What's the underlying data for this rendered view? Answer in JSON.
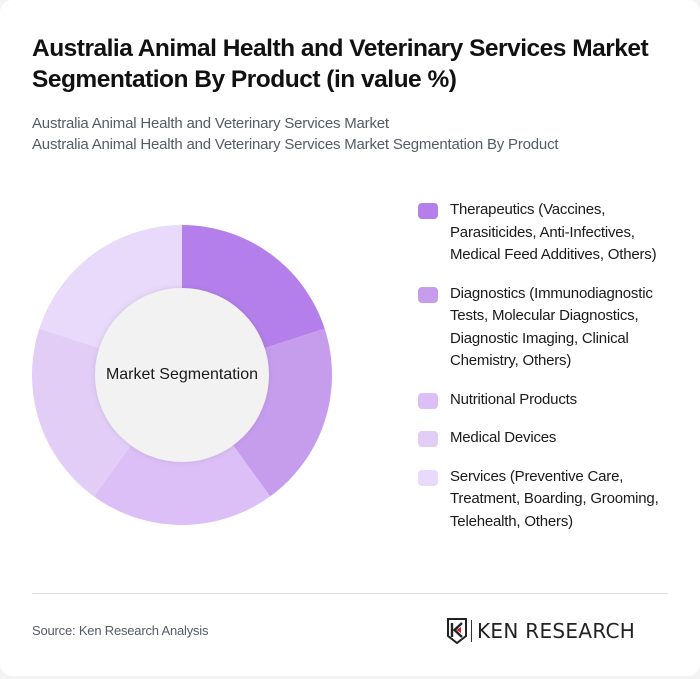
{
  "header": {
    "title": "Australia Animal Health and Veterinary Services Market Segmentation By Product (in value %)",
    "subtitle_lines": [
      "Australia Animal Health and Veterinary Services Market",
      "Australia Animal Health and Veterinary Services Market Segmentation By Product"
    ]
  },
  "chart": {
    "center_label": "Market Segmentation"
  },
  "legend": {
    "items": [
      {
        "label": "Therapeutics (Vaccines, Parasiticides, Anti-Infectives, Medical Feed Additives, Others)",
        "color": "#b47fea"
      },
      {
        "label": "Diagnostics (Immunodiagnostic Tests, Molecular Diagnostics, Diagnostic Imaging, Clinical Chemistry, Others)",
        "color": "#c69ded"
      },
      {
        "label": "Nutritional Products",
        "color": "#dbbff6"
      },
      {
        "label": "Medical Devices",
        "color": "#e2cdf7"
      },
      {
        "label": "Services (Preventive Care, Treatment, Boarding, Grooming, Telehealth, Others)",
        "color": "#e9d9fa"
      }
    ]
  },
  "footer": {
    "source": "Source: Ken Research Analysis",
    "logo_text": "KEN RESEARCH"
  },
  "chart_data": {
    "type": "pie",
    "subtype": "donut",
    "title": "Australia Animal Health and Veterinary Services Market Segmentation By Product (in value %)",
    "center_label": "Market Segmentation",
    "categories": [
      "Therapeutics (Vaccines, Parasiticides, Anti-Infectives, Medical Feed Additives, Others)",
      "Diagnostics (Immunodiagnostic Tests, Molecular Diagnostics, Diagnostic Imaging, Clinical Chemistry, Others)",
      "Nutritional Products",
      "Medical Devices",
      "Services (Preventive Care, Treatment, Boarding, Grooming, Telehealth, Others)"
    ],
    "values": [
      20,
      20,
      20,
      20,
      20
    ],
    "colors": [
      "#b47fea",
      "#c69ded",
      "#dbbff6",
      "#e2cdf7",
      "#e9d9fa"
    ],
    "legend_position": "right",
    "start_angle_deg": 0,
    "direction": "clockwise",
    "data_labels": false
  }
}
